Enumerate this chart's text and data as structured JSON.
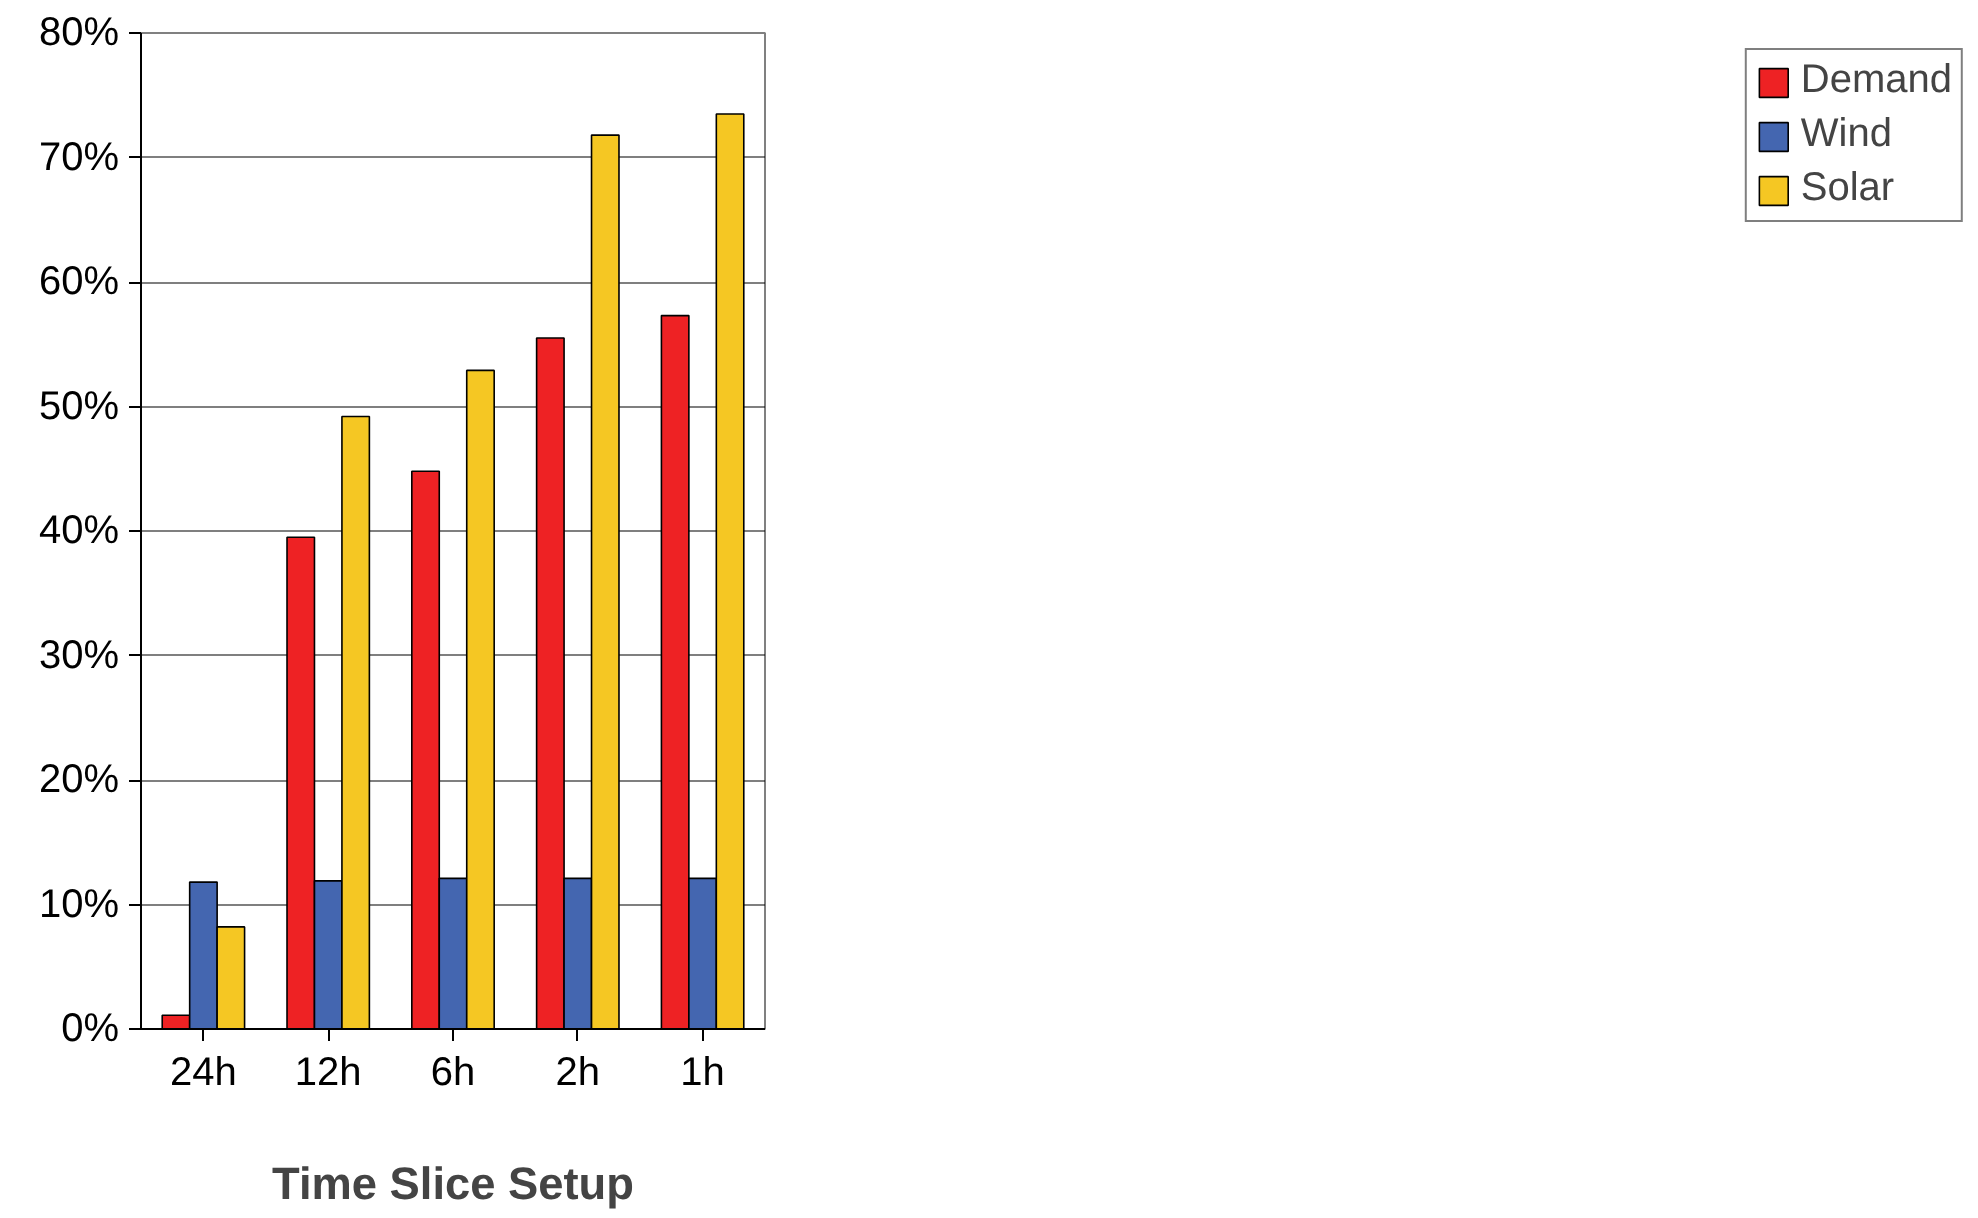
{
  "chart_data": {
    "type": "bar",
    "xlabel": "Time Slice Setup",
    "categories": [
      "24h",
      "12h",
      "6h",
      "2h",
      "1h"
    ],
    "series": [
      {
        "name": "Demand",
        "color": "#ee2224",
        "values": [
          1.1,
          39.5,
          44.8,
          55.5,
          57.3
        ]
      },
      {
        "name": "Wind",
        "color": "#4466b0",
        "values": [
          11.8,
          11.9,
          12.1,
          12.1,
          12.1
        ]
      },
      {
        "name": "Solar",
        "color": "#f5c723",
        "values": [
          8.2,
          49.2,
          52.9,
          71.8,
          73.5
        ]
      }
    ],
    "ylim": [
      0,
      80
    ],
    "yticks": [
      {
        "value": 0,
        "label": "0%"
      },
      {
        "value": 10,
        "label": "10%"
      },
      {
        "value": 20,
        "label": "20%"
      },
      {
        "value": 30,
        "label": "30%"
      },
      {
        "value": 40,
        "label": "40%"
      },
      {
        "value": 50,
        "label": "50%"
      },
      {
        "value": 60,
        "label": "60%"
      },
      {
        "value": 70,
        "label": "70%"
      },
      {
        "value": 80,
        "label": "80%"
      }
    ],
    "grid": "y",
    "legend": "right"
  }
}
